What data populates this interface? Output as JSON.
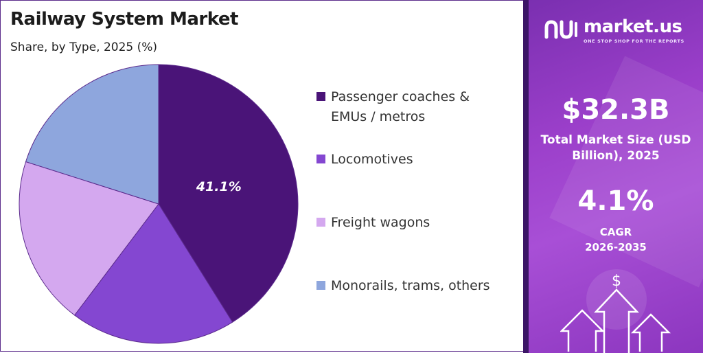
{
  "header": {
    "title": "Railway System Market",
    "subtitle": "Share, by Type, 2025 (%)"
  },
  "chart_data": {
    "type": "pie",
    "title": "Railway System Market",
    "subtitle": "Share, by Type, 2025 (%)",
    "slices": [
      {
        "label": "Passenger coaches & EMUs / metros",
        "value": 41.1,
        "color": "#4a1478",
        "shown_label": "41.1%"
      },
      {
        "label": "Locomotives",
        "value": 19.2,
        "color": "#8447d1",
        "shown_label": ""
      },
      {
        "label": "Freight wagons",
        "value": 19.6,
        "color": "#d4a8ef",
        "shown_label": ""
      },
      {
        "label": "Monorails, trams, others",
        "value": 20.1,
        "color": "#8ea6dd",
        "shown_label": ""
      }
    ],
    "legend_position": "right"
  },
  "legend": {
    "items": [
      {
        "label": "Passenger coaches & EMUs / metros",
        "color": "#4a1478"
      },
      {
        "label": "Locomotives",
        "color": "#8447d1"
      },
      {
        "label": "Freight wagons",
        "color": "#d4a8ef"
      },
      {
        "label": "Monorails, trams, others",
        "color": "#8ea6dd"
      }
    ]
  },
  "sidebar": {
    "logo_text": "market.us",
    "logo_tagline": "ONE STOP SHOP FOR THE REPORTS",
    "market_size_value": "$32.3B",
    "market_size_label": "Total Market Size (USD Billion), 2025",
    "cagr_value": "4.1%",
    "cagr_label_line1": "CAGR",
    "cagr_label_line2": "2026-2035",
    "dollar_symbol": "$"
  },
  "colors": {
    "panel_gradient_start": "#7a2fb0",
    "panel_gradient_end": "#a84fd6",
    "accent_dark": "#3b1566"
  }
}
